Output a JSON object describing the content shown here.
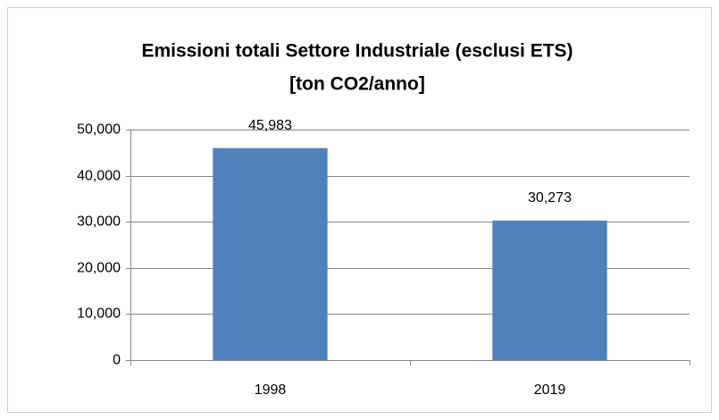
{
  "chart_data": {
    "type": "bar",
    "title": [
      "Emissioni totali Settore Industriale (esclusi ETS)",
      "[ton CO2/anno]"
    ],
    "categories": [
      "1998",
      "2019"
    ],
    "values": [
      45983,
      30273
    ],
    "value_labels": [
      "45,983",
      "30,273"
    ],
    "color": "#4f81bd",
    "ylim": [
      0,
      50000
    ],
    "yticks": [
      0,
      {
        "value": 10000,
        "label": "10,000"
      },
      {
        "value": 20000,
        "label": "20,000"
      },
      {
        "value": 30000,
        "label": "30,000"
      },
      {
        "value": 40000,
        "label": "40,000"
      },
      {
        "value": 50000,
        "label": "50,000"
      }
    ],
    "grid": true
  }
}
